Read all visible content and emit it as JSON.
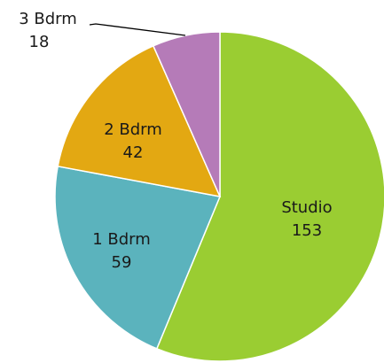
{
  "chart_data": {
    "type": "pie",
    "title": "",
    "categories": [
      "Studio",
      "1 Bdrm",
      "2 Bdrm",
      "3 Bdrm"
    ],
    "values": [
      153,
      59,
      42,
      18
    ],
    "colors": [
      "#9ACD32",
      "#5BB3BD",
      "#E3A812",
      "#B57BB8"
    ],
    "labels": [
      "Studio",
      "1 Bdrm",
      "2 Bdrm",
      "3 Bdrm"
    ],
    "value_labels": [
      "153",
      "59",
      "42",
      "18"
    ],
    "legend": "none",
    "start_angle_deg": 0,
    "direction": "clockwise"
  }
}
